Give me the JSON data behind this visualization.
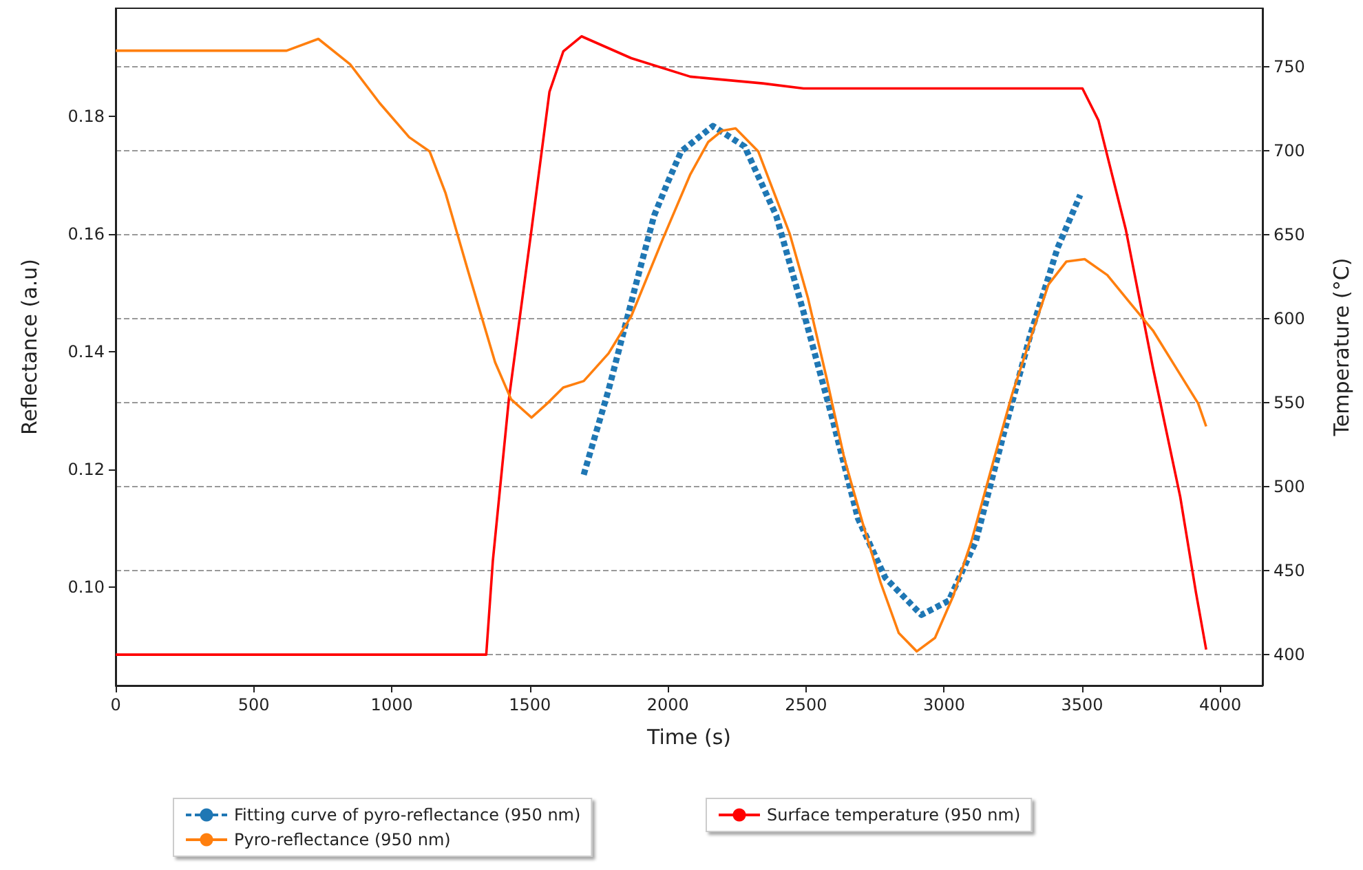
{
  "chart_data": {
    "type": "line",
    "xlabel": "Time (s)",
    "ylabel": "Reflectance (a.u)",
    "y2label": "Temperature (°C)",
    "xlim": [
      0,
      4153
    ],
    "xticks": [
      0,
      500,
      1000,
      1500,
      2000,
      2500,
      3000,
      3500,
      4000
    ],
    "ylim": [
      0.0833,
      0.1983
    ],
    "yticks": [
      {
        "value": 0.1,
        "label": "0.10"
      },
      {
        "value": 0.12,
        "label": "0.12"
      },
      {
        "value": 0.14,
        "label": "0.14"
      },
      {
        "value": 0.16,
        "label": "0.16"
      },
      {
        "value": 0.18,
        "label": "0.18"
      }
    ],
    "y2lim": [
      381.6,
      784.7
    ],
    "y2ticks": [
      400,
      450,
      500,
      550,
      600,
      650,
      700,
      750
    ],
    "grid": "y2",
    "legend": "bottom",
    "series": [
      {
        "name": "Fitting curve of pyro-reflectance (950 nm)",
        "color": "#1f77b4",
        "line_style": "dashed",
        "x": [
          1695,
          1785,
          1884,
          1950,
          1998,
          2048,
          2163,
          2278,
          2392,
          2491,
          2590,
          2688,
          2787,
          2918,
          3017,
          3115,
          3214,
          3312,
          3411,
          3493
        ],
        "values": [
          0.1191,
          0.1335,
          0.1514,
          0.1631,
          0.1686,
          0.174,
          0.1783,
          0.1748,
          0.1631,
          0.1467,
          0.1296,
          0.1117,
          0.1016,
          0.0953,
          0.0977,
          0.1078,
          0.1257,
          0.1428,
          0.1576,
          0.1666
        ]
      },
      {
        "name": "Pyro-reflectance (950 nm)",
        "color": "#ff7f0e",
        "line_style": "solid",
        "x": [
          0,
          619,
          734,
          849,
          956,
          1063,
          1137,
          1194,
          1276,
          1374,
          1432,
          1506,
          1563,
          1621,
          1695,
          1785,
          1867,
          1982,
          2081,
          2146,
          2196,
          2245,
          2327,
          2441,
          2507,
          2573,
          2639,
          2705,
          2770,
          2836,
          2901,
          2967,
          3033,
          3099,
          3181,
          3246,
          3312,
          3378,
          3443,
          3509,
          3591,
          3673,
          3756,
          3838,
          3920,
          3949
        ],
        "values": [
          0.1911,
          0.1911,
          0.1931,
          0.1888,
          0.1822,
          0.1764,
          0.174,
          0.167,
          0.1537,
          0.1382,
          0.1319,
          0.1288,
          0.1312,
          0.1339,
          0.135,
          0.1397,
          0.146,
          0.1592,
          0.1701,
          0.1756,
          0.1775,
          0.1779,
          0.174,
          0.16,
          0.1491,
          0.1358,
          0.1218,
          0.1109,
          0.1008,
          0.0922,
          0.0891,
          0.0914,
          0.0985,
          0.1078,
          0.1218,
          0.1327,
          0.1421,
          0.1514,
          0.1553,
          0.1557,
          0.153,
          0.1483,
          0.1436,
          0.1374,
          0.1312,
          0.1273
        ]
      },
      {
        "name": "Surface temperature (950 nm)",
        "color": "#ff0000",
        "line_style": "solid",
        "axis": "y2",
        "x": [
          0,
          1342,
          1366,
          1424,
          1506,
          1571,
          1621,
          1687,
          1867,
          2081,
          2343,
          2491,
          2935,
          3501,
          3559,
          3658,
          3756,
          3855,
          3912,
          3949
        ],
        "values": [
          400,
          400,
          456,
          552,
          653,
          735,
          759,
          768,
          755,
          744,
          740,
          737,
          737,
          737,
          718,
          653,
          571,
          494,
          437,
          403
        ]
      }
    ]
  }
}
